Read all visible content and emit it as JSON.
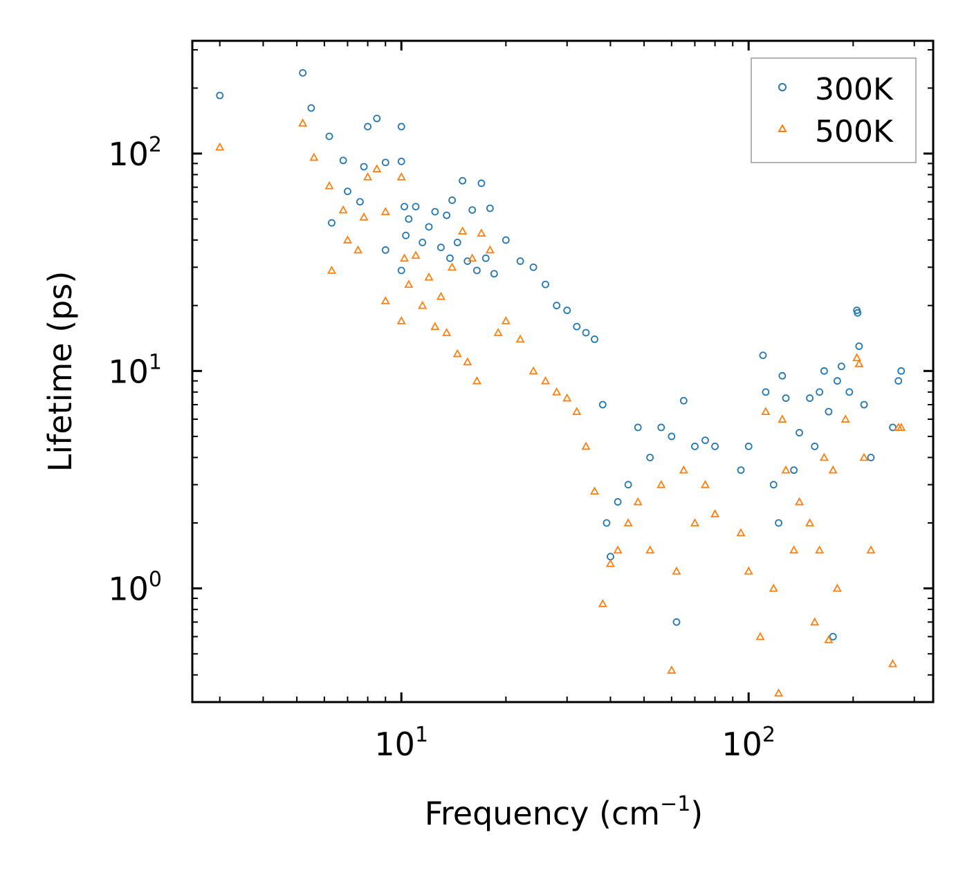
{
  "chart_data": {
    "type": "scatter",
    "title": "",
    "xlabel": "Frequency (cm",
    "xlabel_sup": "−1",
    "xlabel_close": ")",
    "ylabel": "Lifetime (ps)",
    "xscale": "log",
    "yscale": "log",
    "xlim": [
      2.5,
      340
    ],
    "ylim": [
      0.3,
      330
    ],
    "x_ticks": [
      {
        "value": 10,
        "base": "10",
        "exp": "1"
      },
      {
        "value": 100,
        "base": "10",
        "exp": "2"
      }
    ],
    "y_ticks": [
      {
        "value": 1,
        "base": "10",
        "exp": "0"
      },
      {
        "value": 10,
        "base": "10",
        "exp": "1"
      },
      {
        "value": 100,
        "base": "10",
        "exp": "2"
      }
    ],
    "legend_position": "top-right",
    "series": [
      {
        "name": "300K",
        "marker": "circle",
        "color": "#1f77b4",
        "points": [
          [
            3.0,
            185
          ],
          [
            5.2,
            235
          ],
          [
            5.5,
            162
          ],
          [
            6.2,
            120
          ],
          [
            6.3,
            48
          ],
          [
            6.8,
            93
          ],
          [
            7.0,
            67
          ],
          [
            7.6,
            60
          ],
          [
            7.8,
            87
          ],
          [
            8.0,
            133
          ],
          [
            8.5,
            145
          ],
          [
            9.0,
            91
          ],
          [
            9.0,
            36
          ],
          [
            10.0,
            133
          ],
          [
            10.0,
            92
          ],
          [
            10.0,
            29
          ],
          [
            10.2,
            57
          ],
          [
            10.3,
            42
          ],
          [
            10.5,
            50
          ],
          [
            11.0,
            57
          ],
          [
            11.5,
            39
          ],
          [
            12.0,
            46
          ],
          [
            12.5,
            54
          ],
          [
            13.0,
            37
          ],
          [
            13.5,
            52
          ],
          [
            13.8,
            33
          ],
          [
            14.0,
            61
          ],
          [
            14.5,
            39
          ],
          [
            15.0,
            75
          ],
          [
            15.5,
            32
          ],
          [
            16.0,
            55
          ],
          [
            16.5,
            29
          ],
          [
            17.0,
            73
          ],
          [
            17.5,
            33
          ],
          [
            18.0,
            56
          ],
          [
            18.5,
            28
          ],
          [
            20.0,
            40
          ],
          [
            22.0,
            32
          ],
          [
            24.0,
            30
          ],
          [
            26.0,
            25
          ],
          [
            28.0,
            20
          ],
          [
            30.0,
            19
          ],
          [
            32.0,
            16
          ],
          [
            34.0,
            15
          ],
          [
            36.0,
            14
          ],
          [
            38.0,
            7.0
          ],
          [
            39.0,
            2.0
          ],
          [
            40.0,
            1.4
          ],
          [
            42.0,
            2.5
          ],
          [
            45.0,
            3.0
          ],
          [
            48.0,
            5.5
          ],
          [
            52.0,
            4.0
          ],
          [
            56.0,
            5.5
          ],
          [
            60.0,
            5.0
          ],
          [
            62.0,
            0.7
          ],
          [
            65.0,
            7.3
          ],
          [
            70.0,
            4.5
          ],
          [
            75.0,
            4.8
          ],
          [
            80.0,
            4.5
          ],
          [
            95.0,
            3.5
          ],
          [
            100.0,
            4.5
          ],
          [
            110.0,
            11.8
          ],
          [
            112.0,
            8.0
          ],
          [
            118.0,
            3.0
          ],
          [
            122.0,
            2.0
          ],
          [
            125.0,
            9.5
          ],
          [
            128.0,
            7.5
          ],
          [
            135.0,
            3.5
          ],
          [
            140.0,
            5.2
          ],
          [
            150.0,
            7.5
          ],
          [
            155.0,
            4.5
          ],
          [
            160.0,
            8.0
          ],
          [
            165.0,
            10.0
          ],
          [
            170.0,
            6.5
          ],
          [
            175.0,
            0.6
          ],
          [
            180.0,
            9.0
          ],
          [
            185.0,
            10.5
          ],
          [
            195.0,
            8.0
          ],
          [
            205.0,
            19.0
          ],
          [
            206.0,
            18.5
          ],
          [
            208.0,
            13.0
          ],
          [
            215.0,
            7.0
          ],
          [
            225.0,
            4.0
          ],
          [
            260.0,
            5.5
          ],
          [
            270.0,
            9.0
          ],
          [
            275.0,
            10.0
          ]
        ]
      },
      {
        "name": "500K",
        "marker": "triangle",
        "color": "#ff7f0e",
        "points": [
          [
            3.0,
            107
          ],
          [
            5.2,
            138
          ],
          [
            5.6,
            96
          ],
          [
            6.2,
            71
          ],
          [
            6.3,
            29
          ],
          [
            6.8,
            55
          ],
          [
            7.0,
            40
          ],
          [
            7.5,
            36
          ],
          [
            7.8,
            51
          ],
          [
            8.0,
            78
          ],
          [
            8.5,
            85
          ],
          [
            9.0,
            54
          ],
          [
            9.0,
            21
          ],
          [
            10.0,
            78
          ],
          [
            10.0,
            17
          ],
          [
            10.2,
            33
          ],
          [
            10.5,
            25
          ],
          [
            11.0,
            34
          ],
          [
            11.5,
            20
          ],
          [
            12.0,
            27
          ],
          [
            12.5,
            16
          ],
          [
            13.0,
            22
          ],
          [
            13.5,
            15
          ],
          [
            14.0,
            30
          ],
          [
            14.5,
            12
          ],
          [
            15.0,
            44
          ],
          [
            15.5,
            11
          ],
          [
            16.0,
            33
          ],
          [
            16.5,
            9
          ],
          [
            17.0,
            43
          ],
          [
            18.0,
            36
          ],
          [
            19.0,
            15
          ],
          [
            20.0,
            17
          ],
          [
            22.0,
            14
          ],
          [
            24.0,
            10
          ],
          [
            26.0,
            9
          ],
          [
            28.0,
            8
          ],
          [
            30.0,
            7.5
          ],
          [
            32.0,
            6.5
          ],
          [
            34.0,
            4.5
          ],
          [
            36.0,
            2.8
          ],
          [
            38.0,
            0.85
          ],
          [
            40.0,
            1.3
          ],
          [
            42.0,
            1.5
          ],
          [
            45.0,
            2.0
          ],
          [
            48.0,
            2.5
          ],
          [
            52.0,
            1.5
          ],
          [
            56.0,
            3.0
          ],
          [
            60.0,
            0.42
          ],
          [
            62.0,
            1.2
          ],
          [
            65.0,
            3.5
          ],
          [
            70.0,
            2.0
          ],
          [
            75.0,
            3.0
          ],
          [
            80.0,
            2.2
          ],
          [
            95.0,
            1.8
          ],
          [
            100.0,
            1.2
          ],
          [
            108.0,
            0.6
          ],
          [
            112.0,
            6.5
          ],
          [
            118.0,
            1.0
          ],
          [
            122.0,
            0.33
          ],
          [
            125.0,
            6.0
          ],
          [
            128.0,
            3.5
          ],
          [
            135.0,
            1.5
          ],
          [
            140.0,
            2.5
          ],
          [
            150.0,
            2.0
          ],
          [
            155.0,
            0.7
          ],
          [
            160.0,
            1.5
          ],
          [
            165.0,
            4.0
          ],
          [
            170.0,
            0.58
          ],
          [
            175.0,
            3.5
          ],
          [
            180.0,
            1.0
          ],
          [
            190.0,
            6.0
          ],
          [
            205.0,
            11.5
          ],
          [
            208.0,
            10.8
          ],
          [
            215.0,
            4.0
          ],
          [
            225.0,
            1.5
          ],
          [
            260.0,
            0.45
          ],
          [
            270.0,
            5.5
          ],
          [
            275.0,
            5.5
          ]
        ]
      }
    ]
  }
}
